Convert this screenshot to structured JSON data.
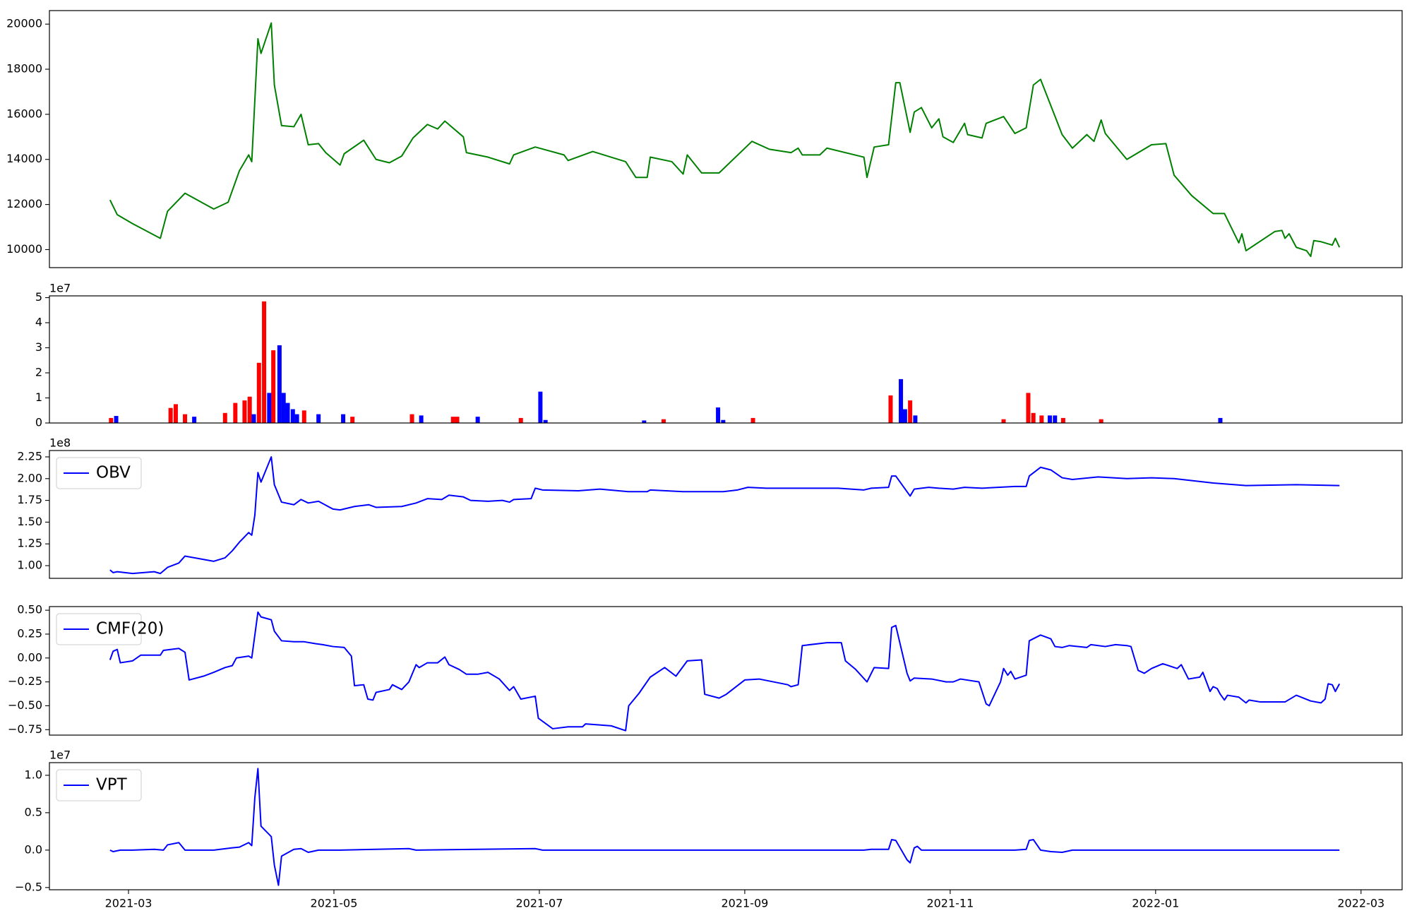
{
  "chart_data": [
    {
      "type": "line",
      "xlim": [
        2.23,
        15.4
      ],
      "ylim": [
        9200,
        20600
      ],
      "yticks": [
        10000,
        12000,
        14000,
        16000,
        18000,
        20000
      ],
      "series": [
        {
          "color": "#008000",
          "x": [
            2.82,
            2.89,
            3.04,
            3.31,
            3.38,
            3.55,
            3.75,
            3.83,
            3.97,
            4.08,
            4.17,
            4.2,
            4.26,
            4.29,
            4.39,
            4.42,
            4.49,
            4.61,
            4.68,
            4.75,
            4.85,
            4.92,
            5.06,
            5.1,
            5.29,
            5.41,
            5.54,
            5.66,
            5.77,
            5.91,
            6.01,
            6.08,
            6.26,
            6.29,
            6.5,
            6.71,
            6.75,
            6.96,
            7.24,
            7.28,
            7.52,
            7.84,
            7.94,
            8.05,
            8.08,
            8.29,
            8.4,
            8.44,
            8.58,
            8.75,
            9.07,
            9.24,
            9.45,
            9.52,
            9.56,
            9.73,
            9.8,
            10.16,
            10.19,
            10.26,
            10.4,
            10.47,
            10.51,
            10.61,
            10.65,
            10.72,
            10.82,
            10.89,
            10.93,
            11.03,
            11.14,
            11.17,
            11.31,
            11.35,
            11.52,
            11.63,
            11.74,
            11.81,
            11.88,
            12.09,
            12.19,
            12.33,
            12.4,
            12.47,
            12.51,
            12.72,
            12.96,
            13.1,
            13.18,
            13.35,
            13.56,
            13.67,
            13.81,
            13.84,
            13.88,
            14.16,
            14.23,
            14.26,
            14.3,
            14.37,
            14.47,
            14.51,
            14.54,
            14.61,
            14.72,
            14.75,
            14.79
          ],
          "values": [
            12200,
            11550,
            11150,
            10500,
            11700,
            12500,
            12000,
            11800,
            12100,
            13500,
            14200,
            13900,
            19350,
            18700,
            20050,
            17300,
            15500,
            15450,
            16000,
            14650,
            14700,
            14300,
            13750,
            14250,
            14850,
            14000,
            13850,
            14150,
            14950,
            15550,
            15350,
            15700,
            15000,
            14300,
            14100,
            13800,
            14200,
            14550,
            14200,
            13950,
            14350,
            13900,
            13200,
            13200,
            14100,
            13900,
            13350,
            14200,
            13400,
            13400,
            14800,
            14450,
            14300,
            14500,
            14200,
            14200,
            14500,
            14100,
            13200,
            14550,
            14650,
            17400,
            17400,
            15200,
            16100,
            16300,
            15400,
            15800,
            15000,
            14750,
            15600,
            15100,
            14950,
            15600,
            15900,
            15150,
            15400,
            17300,
            17550,
            15100,
            14500,
            15100,
            14800,
            15750,
            15150,
            14000,
            14650,
            14700,
            13300,
            12400,
            11600,
            11600,
            10300,
            10700,
            9950,
            10800,
            10850,
            10500,
            10700,
            10100,
            9950,
            9700,
            10400,
            10350,
            10200,
            10500,
            10100
          ]
        }
      ]
    },
    {
      "type": "bar",
      "offset_label": "1e7",
      "xlim": [
        2.23,
        15.4
      ],
      "ylim": [
        0,
        5.07
      ],
      "yticks": [
        0,
        1,
        2,
        3,
        4,
        5
      ],
      "series": [
        {
          "color": "#ff0000",
          "x": [
            2.83,
            3.41,
            3.46,
            3.55,
            3.94,
            4.04,
            4.13,
            4.18,
            4.27,
            4.32,
            4.41,
            4.71,
            5.18,
            5.76,
            6.16,
            6.2,
            6.82,
            8.21,
            9.08,
            10.42,
            10.61,
            11.52,
            11.76,
            11.81,
            11.89,
            12.1,
            12.47
          ],
          "values": [
            0.2,
            0.6,
            0.75,
            0.35,
            0.4,
            0.8,
            0.9,
            1.05,
            2.4,
            4.85,
            2.9,
            0.5,
            0.25,
            0.35,
            0.25,
            0.25,
            0.2,
            0.15,
            0.2,
            1.1,
            0.9,
            0.15,
            1.2,
            0.4,
            0.3,
            0.2,
            0.15
          ]
        },
        {
          "color": "#0000ff",
          "x": [
            2.88,
            3.64,
            4.22,
            4.37,
            4.47,
            4.51,
            4.55,
            4.6,
            4.64,
            4.85,
            5.09,
            5.85,
            6.4,
            7.01,
            7.06,
            8.02,
            8.74,
            8.79,
            10.52,
            10.56,
            10.66,
            11.97,
            12.02,
            13.63
          ],
          "values": [
            0.28,
            0.25,
            0.35,
            1.2,
            3.1,
            1.2,
            0.8,
            0.55,
            0.35,
            0.35,
            0.35,
            0.3,
            0.25,
            1.25,
            0.12,
            0.1,
            0.62,
            0.12,
            1.75,
            0.55,
            0.3,
            0.3,
            0.3,
            0.2
          ]
        }
      ]
    },
    {
      "type": "line",
      "offset_label": "1e8",
      "legend": "upper left",
      "xlim": [
        2.23,
        15.4
      ],
      "ylim": [
        0.854,
        2.323
      ],
      "yticks": [
        {
          "value": 1,
          "label": "1.00"
        },
        {
          "value": 1.25,
          "label": "1.25"
        },
        {
          "value": 1.5,
          "label": "1.50"
        },
        {
          "value": 1.75,
          "label": "1.75"
        },
        {
          "value": 2,
          "label": "2.00"
        },
        {
          "value": 2.25,
          "label": "2.25"
        }
      ],
      "series": [
        {
          "name": "OBV",
          "color": "#0000ff",
          "x": [
            2.82,
            2.85,
            2.89,
            3.04,
            3.25,
            3.31,
            3.38,
            3.49,
            3.55,
            3.83,
            3.94,
            4.01,
            4.08,
            4.17,
            4.2,
            4.23,
            4.26,
            4.29,
            4.39,
            4.42,
            4.49,
            4.61,
            4.68,
            4.75,
            4.85,
            4.99,
            5.06,
            5.2,
            5.34,
            5.41,
            5.66,
            5.8,
            5.91,
            6.05,
            6.12,
            6.26,
            6.33,
            6.5,
            6.64,
            6.71,
            6.75,
            6.92,
            6.96,
            7.03,
            7.38,
            7.59,
            7.87,
            8.05,
            8.08,
            8.4,
            8.58,
            8.79,
            8.93,
            9.03,
            9.21,
            9.56,
            9.91,
            10.16,
            10.23,
            10.4,
            10.43,
            10.47,
            10.61,
            10.65,
            10.79,
            10.89,
            11.03,
            11.14,
            11.31,
            11.63,
            11.74,
            11.77,
            11.88,
            11.98,
            12.09,
            12.19,
            12.44,
            12.72,
            12.96,
            13.18,
            13.56,
            13.88,
            14.37,
            14.79
          ],
          "values": [
            0.95,
            0.92,
            0.93,
            0.91,
            0.93,
            0.91,
            0.98,
            1.03,
            1.11,
            1.05,
            1.09,
            1.17,
            1.27,
            1.38,
            1.35,
            1.58,
            2.07,
            1.96,
            2.25,
            1.93,
            1.73,
            1.7,
            1.76,
            1.72,
            1.74,
            1.65,
            1.64,
            1.68,
            1.7,
            1.67,
            1.68,
            1.72,
            1.77,
            1.76,
            1.81,
            1.79,
            1.75,
            1.74,
            1.75,
            1.73,
            1.76,
            1.77,
            1.89,
            1.87,
            1.86,
            1.88,
            1.85,
            1.85,
            1.87,
            1.85,
            1.85,
            1.85,
            1.87,
            1.9,
            1.89,
            1.89,
            1.89,
            1.87,
            1.89,
            1.9,
            2.03,
            2.03,
            1.8,
            1.88,
            1.9,
            1.89,
            1.88,
            1.9,
            1.89,
            1.91,
            1.91,
            2.03,
            2.13,
            2.1,
            2.01,
            1.99,
            2.02,
            2.0,
            2.01,
            2.0,
            1.95,
            1.92,
            1.93,
            1.92
          ]
        }
      ]
    },
    {
      "type": "line",
      "legend": "upper left",
      "xlim": [
        2.23,
        15.4
      ],
      "ylim": [
        -0.807,
        0.538
      ],
      "yticks": [
        {
          "value": -0.75,
          "label": "−0.75"
        },
        {
          "value": -0.5,
          "label": "−0.50"
        },
        {
          "value": -0.25,
          "label": "−0.25"
        },
        {
          "value": 0,
          "label": "0.00"
        },
        {
          "value": 0.25,
          "label": "0.25"
        },
        {
          "value": 0.5,
          "label": "0.50"
        }
      ],
      "series": [
        {
          "name": "CMF(20)",
          "color": "#0000ff",
          "x": [
            2.82,
            2.85,
            2.89,
            2.92,
            3.04,
            3.12,
            3.25,
            3.31,
            3.34,
            3.49,
            3.55,
            3.59,
            3.73,
            3.83,
            3.94,
            4.01,
            4.05,
            4.17,
            4.2,
            4.26,
            4.29,
            4.39,
            4.42,
            4.49,
            4.61,
            4.71,
            4.82,
            4.89,
            4.99,
            5.1,
            5.17,
            5.2,
            5.29,
            5.33,
            5.38,
            5.41,
            5.54,
            5.57,
            5.66,
            5.73,
            5.8,
            5.83,
            5.91,
            6.01,
            6.08,
            6.12,
            6.22,
            6.29,
            6.4,
            6.5,
            6.61,
            6.71,
            6.75,
            6.82,
            6.96,
            6.99,
            7.13,
            7.28,
            7.42,
            7.45,
            7.7,
            7.84,
            7.87,
            7.97,
            8.08,
            8.22,
            8.33,
            8.44,
            8.58,
            8.61,
            8.75,
            8.82,
            9.0,
            9.14,
            9.42,
            9.45,
            9.52,
            9.56,
            9.8,
            9.94,
            9.98,
            10.08,
            10.19,
            10.26,
            10.4,
            10.43,
            10.47,
            10.58,
            10.61,
            10.65,
            10.82,
            10.96,
            11.03,
            11.1,
            11.28,
            11.35,
            11.38,
            11.49,
            11.52,
            11.56,
            11.59,
            11.63,
            11.74,
            11.77,
            11.88,
            11.98,
            12.02,
            12.09,
            12.16,
            12.33,
            12.37,
            12.51,
            12.61,
            12.72,
            12.76,
            12.83,
            12.89,
            12.96,
            13.07,
            13.21,
            13.25,
            13.32,
            13.43,
            13.46,
            13.53,
            13.56,
            13.6,
            13.63,
            13.67,
            13.7,
            13.81,
            13.88,
            13.91,
            14.02,
            14.26,
            14.37,
            14.51,
            14.61,
            14.65,
            14.68,
            14.72,
            14.75,
            14.79
          ],
          "values": [
            -0.02,
            0.07,
            0.09,
            -0.05,
            -0.03,
            0.03,
            0.03,
            0.03,
            0.08,
            0.1,
            0.06,
            -0.23,
            -0.19,
            -0.15,
            -0.1,
            -0.08,
            0.0,
            0.02,
            0.0,
            0.48,
            0.43,
            0.4,
            0.28,
            0.18,
            0.17,
            0.17,
            0.15,
            0.14,
            0.12,
            0.11,
            0.02,
            -0.29,
            -0.28,
            -0.43,
            -0.44,
            -0.36,
            -0.33,
            -0.28,
            -0.33,
            -0.25,
            -0.07,
            -0.1,
            -0.05,
            -0.05,
            0.01,
            -0.07,
            -0.12,
            -0.17,
            -0.17,
            -0.15,
            -0.22,
            -0.34,
            -0.3,
            -0.43,
            -0.4,
            -0.63,
            -0.74,
            -0.72,
            -0.72,
            -0.69,
            -0.71,
            -0.76,
            -0.5,
            -0.37,
            -0.2,
            -0.1,
            -0.19,
            -0.03,
            -0.02,
            -0.38,
            -0.42,
            -0.38,
            -0.23,
            -0.22,
            -0.28,
            -0.3,
            -0.28,
            0.13,
            0.16,
            0.16,
            -0.03,
            -0.12,
            -0.25,
            -0.1,
            -0.11,
            0.32,
            0.34,
            -0.16,
            -0.24,
            -0.21,
            -0.22,
            -0.25,
            -0.25,
            -0.22,
            -0.25,
            -0.48,
            -0.5,
            -0.25,
            -0.11,
            -0.18,
            -0.14,
            -0.22,
            -0.18,
            0.18,
            0.24,
            0.2,
            0.12,
            0.11,
            0.13,
            0.11,
            0.14,
            0.12,
            0.14,
            0.13,
            0.12,
            -0.13,
            -0.16,
            -0.11,
            -0.06,
            -0.11,
            -0.07,
            -0.22,
            -0.2,
            -0.15,
            -0.35,
            -0.3,
            -0.32,
            -0.38,
            -0.44,
            -0.39,
            -0.41,
            -0.47,
            -0.44,
            -0.46,
            -0.46,
            -0.39,
            -0.45,
            -0.47,
            -0.43,
            -0.27,
            -0.28,
            -0.35,
            -0.27
          ]
        }
      ]
    },
    {
      "type": "line",
      "offset_label": "1e7",
      "legend": "upper left",
      "xlim": [
        2.23,
        15.4
      ],
      "ylim": [
        -0.53,
        1.169
      ],
      "yticks": [
        {
          "value": -0.5,
          "label": "−0.5"
        },
        {
          "value": 0,
          "label": "0.0"
        },
        {
          "value": 0.5,
          "label": "0.5"
        },
        {
          "value": 1,
          "label": "1.0"
        }
      ],
      "xticks": [
        {
          "value": 3,
          "label": "2021-03"
        },
        {
          "value": 5,
          "label": "2021-05"
        },
        {
          "value": 7,
          "label": "2021-07"
        },
        {
          "value": 9,
          "label": "2021-09"
        },
        {
          "value": 11,
          "label": "2021-11"
        },
        {
          "value": 13,
          "label": "2022-01"
        },
        {
          "value": 15,
          "label": "2022-03"
        }
      ],
      "series": [
        {
          "name": "VPT",
          "color": "#0000ff",
          "x": [
            2.82,
            2.85,
            2.92,
            3.04,
            3.25,
            3.34,
            3.38,
            3.49,
            3.55,
            3.83,
            4.01,
            4.08,
            4.17,
            4.2,
            4.23,
            4.26,
            4.29,
            4.39,
            4.42,
            4.46,
            4.49,
            4.61,
            4.68,
            4.75,
            4.85,
            5.06,
            5.73,
            5.8,
            6.96,
            7.03,
            10.16,
            10.23,
            10.4,
            10.43,
            10.47,
            10.58,
            10.61,
            10.65,
            10.68,
            10.72,
            11.63,
            11.74,
            11.77,
            11.81,
            11.88,
            11.98,
            12.09,
            12.19,
            14.79
          ],
          "values": [
            0,
            -0.02,
            0,
            0,
            0.01,
            0,
            0.07,
            0.1,
            0,
            0,
            0.03,
            0.04,
            0.1,
            0.06,
            0.7,
            1.09,
            0.32,
            0.18,
            -0.2,
            -0.47,
            -0.08,
            0.01,
            0.02,
            -0.03,
            0,
            0,
            0.02,
            0,
            0.02,
            0,
            0,
            0.01,
            0.01,
            0.14,
            0.13,
            -0.13,
            -0.17,
            0.03,
            0.05,
            0,
            0,
            0.01,
            0.13,
            0.14,
            0,
            -0.02,
            -0.03,
            0,
            0
          ]
        }
      ]
    }
  ]
}
